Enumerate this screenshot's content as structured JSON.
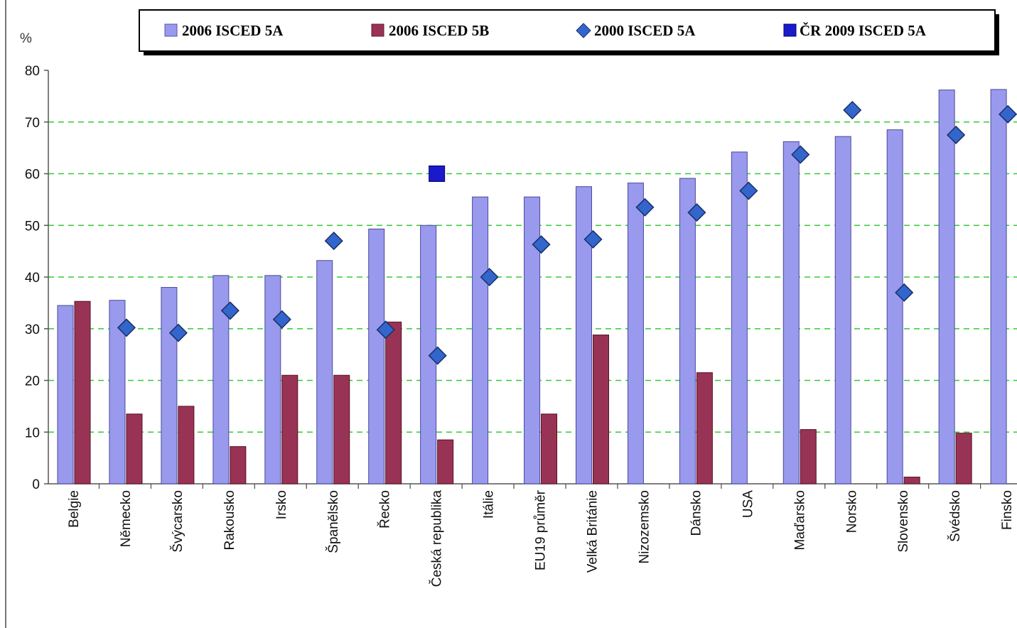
{
  "chart_data": {
    "type": "bar",
    "ylabel": "%",
    "ylim": [
      0,
      80
    ],
    "yticks": [
      0,
      10,
      20,
      30,
      40,
      50,
      60,
      70,
      80
    ],
    "grid": "horizontal dashed",
    "legend_position": "top",
    "categories": [
      "Belgie",
      "Německo",
      "Švýcarsko",
      "Rakousko",
      "Irsko",
      "Španělsko",
      "Řecko",
      "Česká republika",
      "Itálie",
      "EU19 průměr",
      "Velká Británie",
      "Nizozemsko",
      "Dánsko",
      "USA",
      "Maďarsko",
      "Norsko",
      "Slovensko",
      "Švédsko",
      "Finsko"
    ],
    "series": [
      {
        "name": "2006 ISCED 5A",
        "kind": "bar",
        "color": "#9999ee",
        "values": [
          34.5,
          35.5,
          38,
          40.3,
          40.3,
          43.2,
          49.3,
          50,
          55.5,
          55.5,
          57.5,
          58.2,
          59.1,
          64.2,
          66.2,
          67.2,
          68.5,
          76.2,
          76.3
        ]
      },
      {
        "name": "2006 ISCED 5B",
        "kind": "bar",
        "color": "#993355",
        "values": [
          35.3,
          13.5,
          15,
          7.2,
          21,
          21,
          31.3,
          8.5,
          null,
          13.5,
          28.8,
          null,
          21.5,
          null,
          10.5,
          null,
          1.3,
          9.8,
          null
        ]
      },
      {
        "name": "2000 ISCED 5A",
        "kind": "diamond",
        "color": "#3366cc",
        "values": [
          null,
          30.2,
          29.2,
          33.5,
          31.8,
          47,
          29.8,
          24.8,
          40,
          46.3,
          47.3,
          53.5,
          52.5,
          56.7,
          63.7,
          72.3,
          37,
          67.5,
          71.5
        ]
      },
      {
        "name": "ČR 2009 ISCED 5A",
        "kind": "square",
        "color": "#1a1acc",
        "values": [
          null,
          null,
          null,
          null,
          null,
          null,
          null,
          60,
          null,
          null,
          null,
          null,
          null,
          null,
          null,
          null,
          null,
          null,
          null
        ]
      }
    ]
  }
}
